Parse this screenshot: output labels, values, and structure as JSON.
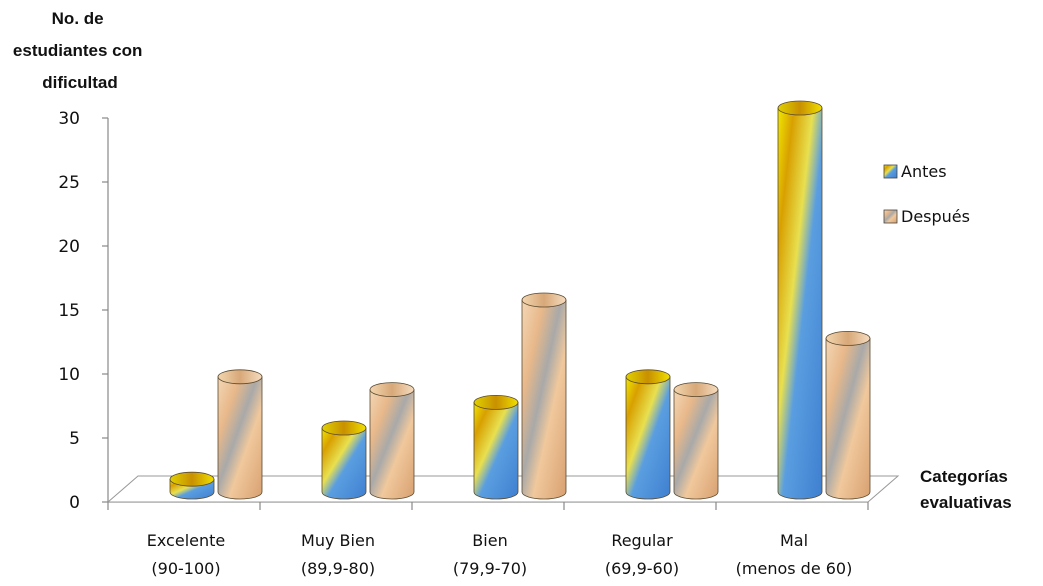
{
  "chart_data": {
    "type": "bar",
    "ylabel": [
      "No. de",
      "estudiantes con",
      "dificultad"
    ],
    "xlabel": [
      "Categorías",
      "evaluativas"
    ],
    "ylim": [
      0,
      30
    ],
    "yticks": [
      0,
      5,
      10,
      15,
      20,
      25,
      30
    ],
    "categories": [
      [
        "Excelente",
        "(90-100)"
      ],
      [
        "Muy Bien",
        "(89,9-80)"
      ],
      [
        "Bien",
        "(79,9-70)"
      ],
      [
        "Regular",
        "(69,9-60)"
      ],
      [
        "Mal",
        "(menos de 60)"
      ]
    ],
    "series": [
      {
        "name": "Antes",
        "values": [
          1,
          5,
          7,
          9,
          30
        ],
        "style": "blue-yellow"
      },
      {
        "name": "Después",
        "values": [
          9,
          8,
          15,
          8,
          12
        ],
        "style": "tan-gray"
      }
    ],
    "legend_position": "right",
    "grid": false
  }
}
